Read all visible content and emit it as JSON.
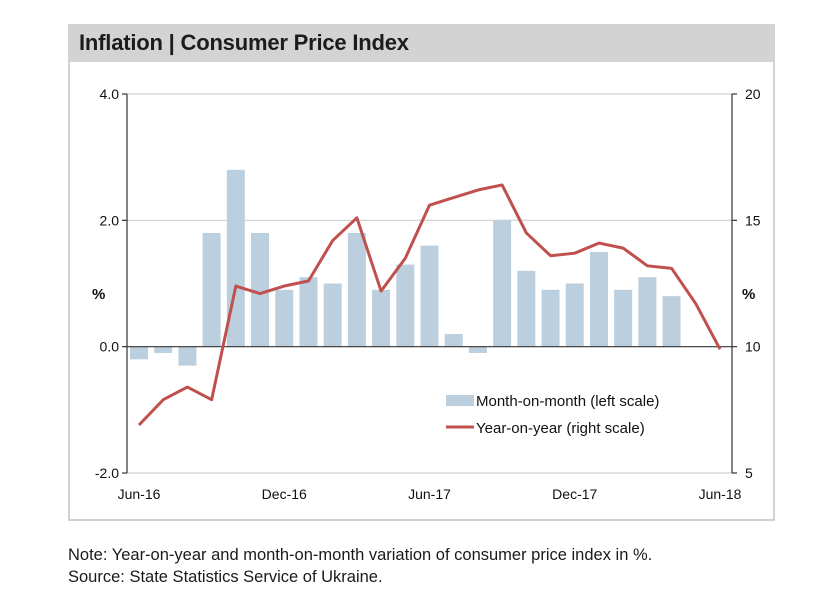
{
  "title": "Inflation | Consumer Price Index",
  "note": "Note: Year-on-year and month-on-month variation of consumer price index in %.",
  "source": "Source: State Statistics Service of Ukraine.",
  "colors": {
    "bar": "#bccfde",
    "line": "#c0504d",
    "title_bg": "#d3d3d3",
    "grid": "#d0d0d0",
    "axis": "#333333"
  },
  "chart_data": {
    "type": "bar+line",
    "title": "Inflation | Consumer Price Index",
    "x": [
      "Jun-16",
      "Jul-16",
      "Aug-16",
      "Sep-16",
      "Oct-16",
      "Nov-16",
      "Dec-16",
      "Jan-17",
      "Feb-17",
      "Mar-17",
      "Apr-17",
      "May-17",
      "Jun-17",
      "Jul-17",
      "Aug-17",
      "Sep-17",
      "Oct-17",
      "Nov-17",
      "Dec-17",
      "Jan-18",
      "Feb-18",
      "Mar-18",
      "Apr-18",
      "May-18",
      "Jun-18"
    ],
    "x_tick_labels": [
      "Jun-16",
      "Dec-16",
      "Jun-17",
      "Dec-17",
      "Jun-18"
    ],
    "series": [
      {
        "name": "Month-on-month (left scale)",
        "type": "bar",
        "axis": "left",
        "values": [
          -0.2,
          -0.1,
          -0.3,
          1.8,
          2.8,
          1.8,
          0.9,
          1.1,
          1.0,
          1.8,
          0.9,
          1.3,
          1.6,
          0.2,
          -0.1,
          2.0,
          1.2,
          0.9,
          1.0,
          1.5,
          0.9,
          1.1,
          0.8,
          0.0,
          null
        ]
      },
      {
        "name": "Year-on-year (right scale)",
        "type": "line",
        "axis": "right",
        "values": [
          6.9,
          7.9,
          8.4,
          7.9,
          12.4,
          12.1,
          12.4,
          12.6,
          14.2,
          15.1,
          12.2,
          13.5,
          15.6,
          15.9,
          16.2,
          16.4,
          14.5,
          13.6,
          13.7,
          14.1,
          13.9,
          13.2,
          13.1,
          11.7,
          9.9
        ]
      }
    ],
    "left_axis": {
      "label": "%",
      "ylim": [
        -2.0,
        4.0
      ],
      "ticks": [
        "4.0",
        "2.0",
        "0.0",
        "-2.0"
      ]
    },
    "right_axis": {
      "label": "%",
      "ylim": [
        5,
        20
      ],
      "ticks": [
        "20",
        "15",
        "10",
        "5"
      ]
    },
    "grid": true,
    "legend_position": "bottom-right",
    "legend": [
      "Month-on-month (left scale)",
      "Year-on-year (right scale)"
    ]
  }
}
